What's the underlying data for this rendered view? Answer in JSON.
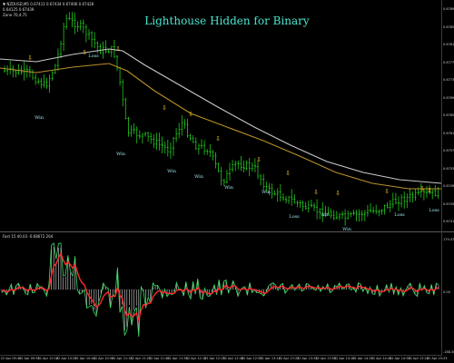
{
  "header": {
    "symbol_line": "▼ NZDUSD,M5 0.67411 0.67434 0.67406 0.67428",
    "line2": "0.64125 0.67439",
    "line3": "Zone 70,4.75"
  },
  "title": "Lighthouse Hidden for Binary",
  "indicator_caption": "Fast 15 40.03 -0.68672 264",
  "price_ticks": [
    "0.67890",
    "0.67850",
    "0.67810",
    "0.67770",
    "0.67730",
    "0.67690",
    "0.67650",
    "0.67610",
    "0.67570",
    "0.67530",
    "0.67490",
    "0.67450",
    "0.67410"
  ],
  "indicator_ticks": [
    "179.4754",
    "0.00",
    "-188.3000"
  ],
  "time_ticks": [
    "22 Apr 09:40",
    "22 Apr 09:55",
    "22 Apr 10:10",
    "22 Apr 10:25",
    "22 Apr 10:40",
    "22 Apr 10:55",
    "22 Apr 11:10",
    "22 Apr 11:25",
    "22 Apr 11:40",
    "22 Apr 11:55",
    "22 Apr 12:10",
    "22 Apr 12:25",
    "22 Apr 12:40",
    "22 Apr 12:55",
    "22 Apr 13:10",
    "22 Apr 13:25",
    "22 Apr 13:40",
    "22 Apr 13:55",
    "22 Apr 14:10",
    "22 Apr 14:25",
    "22 Apr 14:40",
    "22 Apr 14:55",
    "22 Apr 15:10",
    "22 Apr 15:25"
  ],
  "signals": [
    "Win",
    "Loss",
    "Win",
    "Win",
    "Win",
    "Win",
    "Win",
    "Loss",
    "Win",
    "Win",
    "Loss"
  ],
  "colors": {
    "candle": "#22c61e",
    "ma_fast": "#c8c8c8",
    "ma_slow": "#b8902a",
    "arrow": "#f0c419",
    "label": "#9fe7ee",
    "osc_fast": "#ff2a2a",
    "osc_slow": "#3fdc6a",
    "histogram": "#d8d8d8"
  }
}
